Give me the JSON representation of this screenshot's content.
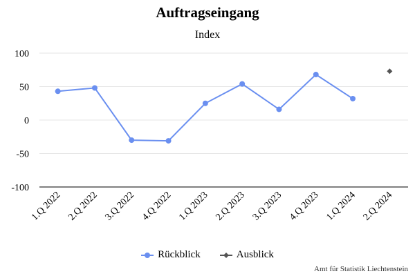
{
  "chart_data": {
    "type": "line",
    "title": "Auftragseingang",
    "subtitle": "Index",
    "categories": [
      "1.Q 2022",
      "2.Q 2022",
      "3.Q 2022",
      "4.Q 2022",
      "1.Q 2023",
      "2.Q 2023",
      "3.Q 2023",
      "4.Q 2023",
      "1.Q 2024",
      "2.Q 2024"
    ],
    "series": [
      {
        "name": "Rückblick",
        "color": "#6a8ff0",
        "marker": "circle",
        "values": [
          43,
          48,
          -30,
          -31,
          25,
          54,
          16,
          68,
          32,
          null
        ]
      },
      {
        "name": "Ausblick",
        "color": "#555555",
        "marker": "diamond",
        "values": [
          null,
          null,
          null,
          null,
          null,
          null,
          null,
          null,
          null,
          73
        ]
      }
    ],
    "yticks": [
      100,
      50,
      0,
      -50,
      -100
    ],
    "ylim": [
      -100,
      100
    ],
    "grid": true,
    "legend_position": "bottom-center",
    "credits": "Amt für Statistik Liechtenstein"
  }
}
